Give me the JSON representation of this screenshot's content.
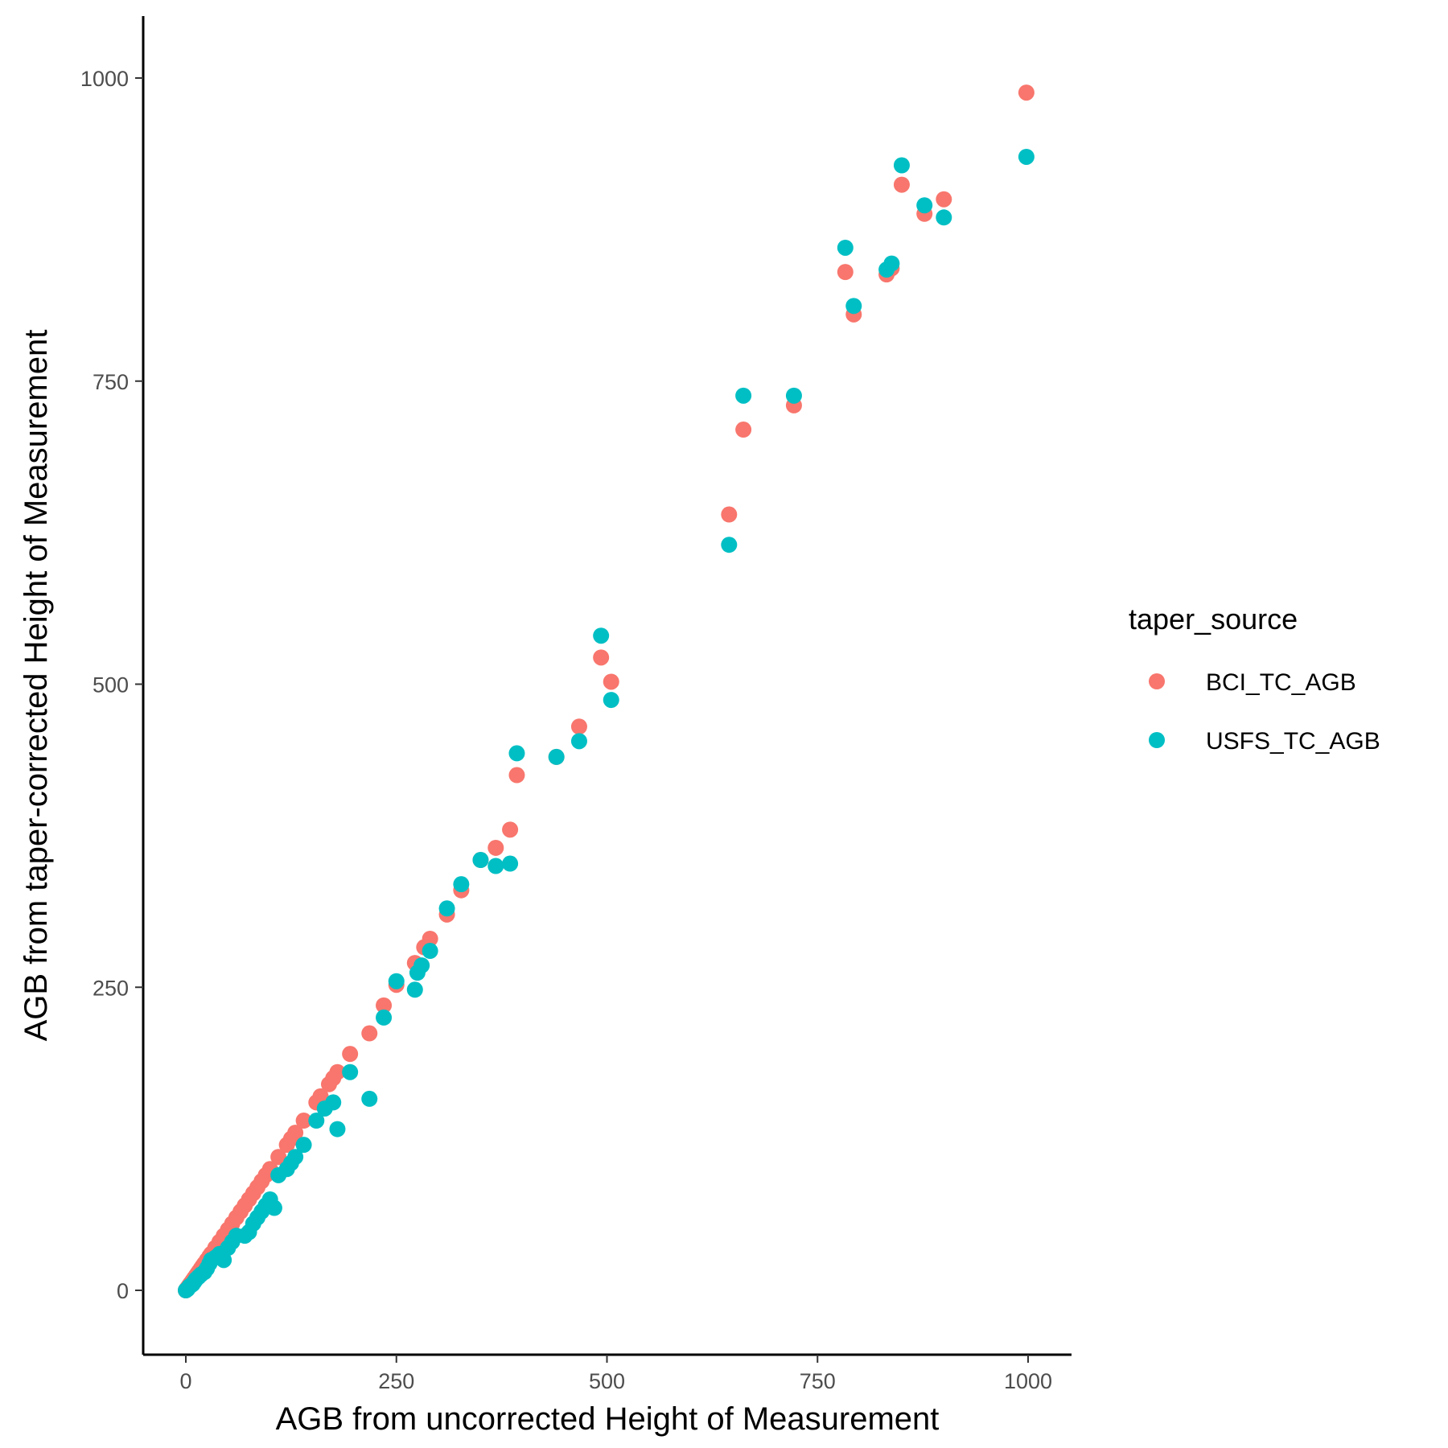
{
  "chart_data": {
    "type": "scatter",
    "title": "",
    "xlabel": "AGB from uncorrected Height of Measurement",
    "ylabel": "AGB from taper-corrected Height of Measurement",
    "xlim": [
      -50,
      1050
    ],
    "ylim": [
      -50,
      1050
    ],
    "x_ticks": [
      0,
      250,
      500,
      750,
      1000
    ],
    "y_ticks": [
      0,
      250,
      500,
      750,
      1000
    ],
    "grid": false,
    "legend": {
      "title": "taper_source",
      "position": "right"
    },
    "series": [
      {
        "name": "BCI_TC_AGB",
        "color": "#F8766D",
        "points": [
          [
            0,
            0
          ],
          [
            1,
            1
          ],
          [
            2,
            2
          ],
          [
            3,
            3
          ],
          [
            4,
            4
          ],
          [
            5,
            5
          ],
          [
            6,
            6
          ],
          [
            8,
            8
          ],
          [
            10,
            10
          ],
          [
            12,
            12
          ],
          [
            14,
            14
          ],
          [
            16,
            16
          ],
          [
            18,
            18
          ],
          [
            20,
            20
          ],
          [
            22,
            22
          ],
          [
            25,
            25
          ],
          [
            28,
            28
          ],
          [
            30,
            30
          ],
          [
            35,
            35
          ],
          [
            40,
            40
          ],
          [
            45,
            45
          ],
          [
            50,
            50
          ],
          [
            55,
            55
          ],
          [
            60,
            60
          ],
          [
            65,
            65
          ],
          [
            70,
            70
          ],
          [
            75,
            75
          ],
          [
            80,
            80
          ],
          [
            85,
            85
          ],
          [
            90,
            90
          ],
          [
            95,
            95
          ],
          [
            100,
            100
          ],
          [
            110,
            110
          ],
          [
            120,
            120
          ],
          [
            125,
            125
          ],
          [
            130,
            130
          ],
          [
            140,
            140
          ],
          [
            155,
            155
          ],
          [
            160,
            160
          ],
          [
            170,
            170
          ],
          [
            175,
            175
          ],
          [
            180,
            180
          ],
          [
            195,
            195
          ],
          [
            218,
            212
          ],
          [
            235,
            235
          ],
          [
            250,
            252
          ],
          [
            272,
            270
          ],
          [
            283,
            283
          ],
          [
            290,
            290
          ],
          [
            310,
            310
          ],
          [
            327,
            330
          ],
          [
            350,
            355
          ],
          [
            368,
            365
          ],
          [
            385,
            380
          ],
          [
            393,
            425
          ],
          [
            440,
            440
          ],
          [
            467,
            465
          ],
          [
            493,
            522
          ],
          [
            505,
            502
          ],
          [
            645,
            640
          ],
          [
            662,
            710
          ],
          [
            722,
            730
          ],
          [
            783,
            840
          ],
          [
            793,
            805
          ],
          [
            832,
            838
          ],
          [
            838,
            843
          ],
          [
            850,
            912
          ],
          [
            877,
            888
          ],
          [
            900,
            900
          ],
          [
            998,
            988
          ]
        ]
      },
      {
        "name": "USFS_TC_AGB",
        "color": "#00BFC4",
        "points": [
          [
            0,
            0
          ],
          [
            2,
            1
          ],
          [
            4,
            3
          ],
          [
            6,
            4
          ],
          [
            8,
            5
          ],
          [
            10,
            7
          ],
          [
            12,
            9
          ],
          [
            15,
            11
          ],
          [
            18,
            13
          ],
          [
            22,
            15
          ],
          [
            25,
            18
          ],
          [
            28,
            22
          ],
          [
            30,
            25
          ],
          [
            35,
            27
          ],
          [
            40,
            30
          ],
          [
            45,
            25
          ],
          [
            50,
            35
          ],
          [
            55,
            40
          ],
          [
            60,
            45
          ],
          [
            70,
            45
          ],
          [
            75,
            48
          ],
          [
            80,
            55
          ],
          [
            85,
            60
          ],
          [
            90,
            65
          ],
          [
            95,
            70
          ],
          [
            100,
            75
          ],
          [
            105,
            68
          ],
          [
            110,
            95
          ],
          [
            120,
            100
          ],
          [
            125,
            105
          ],
          [
            130,
            110
          ],
          [
            140,
            120
          ],
          [
            155,
            140
          ],
          [
            165,
            150
          ],
          [
            175,
            155
          ],
          [
            180,
            133
          ],
          [
            195,
            180
          ],
          [
            218,
            158
          ],
          [
            235,
            225
          ],
          [
            250,
            255
          ],
          [
            272,
            248
          ],
          [
            275,
            262
          ],
          [
            280,
            268
          ],
          [
            290,
            280
          ],
          [
            310,
            315
          ],
          [
            327,
            335
          ],
          [
            350,
            355
          ],
          [
            368,
            350
          ],
          [
            385,
            352
          ],
          [
            393,
            443
          ],
          [
            440,
            440
          ],
          [
            467,
            453
          ],
          [
            493,
            540
          ],
          [
            505,
            487
          ],
          [
            645,
            615
          ],
          [
            662,
            738
          ],
          [
            722,
            738
          ],
          [
            783,
            860
          ],
          [
            793,
            812
          ],
          [
            832,
            842
          ],
          [
            838,
            847
          ],
          [
            850,
            928
          ],
          [
            877,
            895
          ],
          [
            900,
            885
          ],
          [
            998,
            935
          ]
        ]
      }
    ]
  }
}
